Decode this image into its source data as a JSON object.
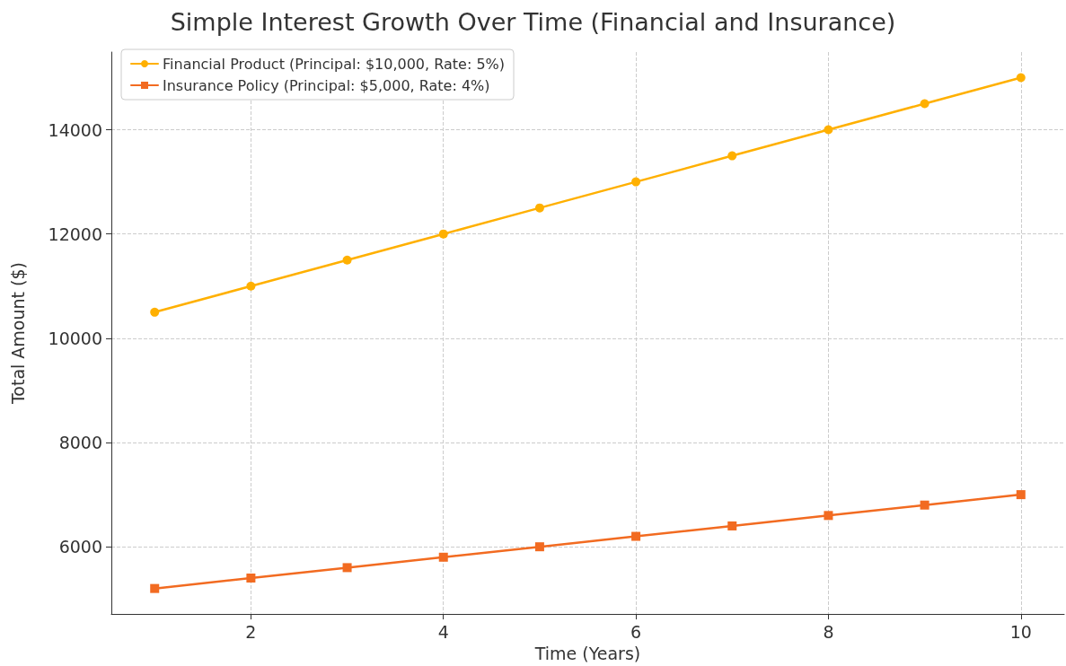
{
  "chart_data": {
    "type": "line",
    "title": "Simple Interest Growth Over Time (Financial and Insurance)",
    "xlabel": "Time (Years)",
    "ylabel": "Total Amount ($)",
    "x": [
      1,
      2,
      3,
      4,
      5,
      6,
      7,
      8,
      9,
      10
    ],
    "series": [
      {
        "name": "Financial Product (Principal: $10,000, Rate: 5%)",
        "color": "#ffb000",
        "marker": "circle",
        "values": [
          10500,
          11000,
          11500,
          12000,
          12500,
          13000,
          13500,
          14000,
          14500,
          15000
        ]
      },
      {
        "name": "Insurance Policy (Principal: $5,000, Rate: 4%)",
        "color": "#f26b21",
        "marker": "square",
        "values": [
          5200,
          5400,
          5600,
          5800,
          6000,
          6200,
          6400,
          6600,
          6800,
          7000
        ]
      }
    ],
    "xlim": [
      0.55,
      10.45
    ],
    "xticks": [
      2,
      4,
      6,
      8,
      10
    ],
    "ylim": [
      4710,
      15490
    ],
    "yticks": [
      6000,
      8000,
      10000,
      12000,
      14000
    ],
    "grid": true,
    "legend": "top left",
    "line_style": "solid"
  }
}
